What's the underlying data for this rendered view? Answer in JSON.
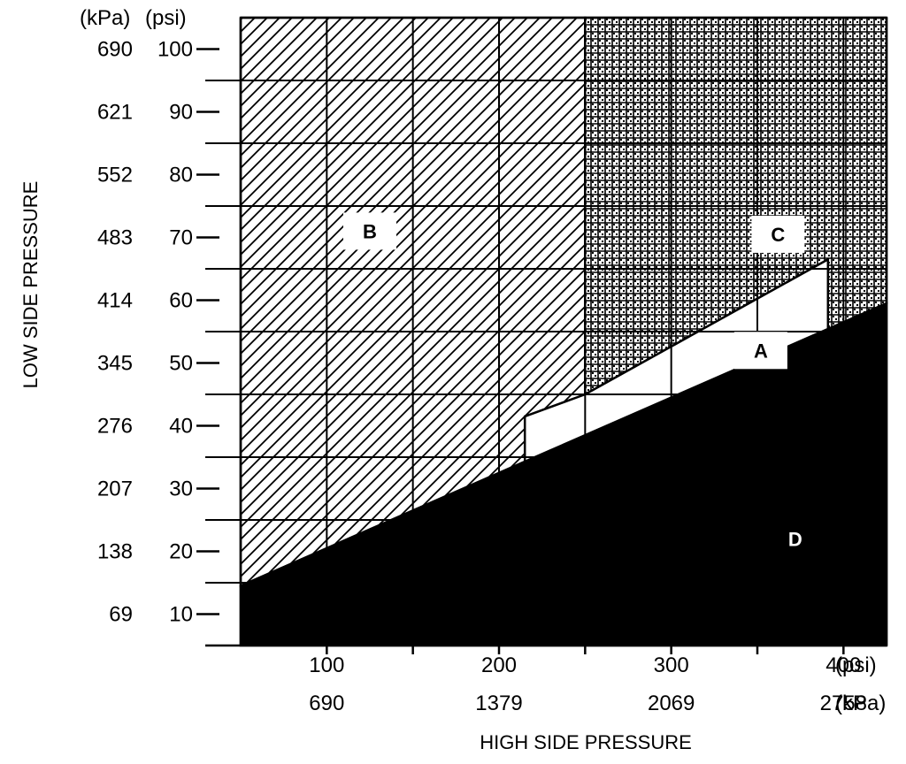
{
  "chart_data": {
    "type": "area",
    "xlabel": "HIGH SIDE PRESSURE",
    "ylabel": "LOW SIDE PRESSURE",
    "x_units": [
      "(psi)",
      "(kPa)"
    ],
    "y_units": [
      "(kPa)",
      "(psi)"
    ],
    "xlim": [
      50,
      425
    ],
    "ylim": [
      5,
      105
    ],
    "x_ticks": [
      {
        "psi": 100,
        "psi_label": "100",
        "kpa_label": "690"
      },
      {
        "psi": 200,
        "psi_label": "200",
        "kpa_label": "1379"
      },
      {
        "psi": 300,
        "psi_label": "300",
        "kpa_label": "2069"
      },
      {
        "psi": 400,
        "psi_label": "400",
        "kpa_label": "2758"
      }
    ],
    "x_minor_ticks": [
      150,
      250,
      350
    ],
    "y_ticks": [
      {
        "psi": 10,
        "psi_label": "10",
        "kpa_label": "69"
      },
      {
        "psi": 20,
        "psi_label": "20",
        "kpa_label": "138"
      },
      {
        "psi": 30,
        "psi_label": "30",
        "kpa_label": "207"
      },
      {
        "psi": 40,
        "psi_label": "40",
        "kpa_label": "276"
      },
      {
        "psi": 50,
        "psi_label": "50",
        "kpa_label": "345"
      },
      {
        "psi": 60,
        "psi_label": "60",
        "kpa_label": "414"
      },
      {
        "psi": 70,
        "psi_label": "70",
        "kpa_label": "483"
      },
      {
        "psi": 80,
        "psi_label": "80",
        "kpa_label": "552"
      },
      {
        "psi": 90,
        "psi_label": "90",
        "kpa_label": "621"
      },
      {
        "psi": 100,
        "psi_label": "100",
        "kpa_label": "690"
      }
    ],
    "grid_x": [
      100,
      150,
      200,
      250,
      300,
      350,
      400,
      425
    ],
    "grid_y": [
      15,
      25,
      35,
      45,
      55,
      65,
      75,
      85,
      95
    ],
    "grid": true,
    "regions": [
      {
        "label": "A",
        "fill": "white",
        "polygon": [
          [
            215,
            41.5
          ],
          [
            215,
            33
          ],
          [
            391,
            55.4
          ],
          [
            391,
            66.5
          ],
          [
            250,
            45
          ]
        ],
        "label_at": [
          352,
          52
        ]
      },
      {
        "label": "B",
        "fill": "diagonal-hatch",
        "polygon": [
          [
            50,
            105
          ],
          [
            50,
            14.5
          ],
          [
            250,
            38.3
          ],
          [
            250,
            105
          ]
        ],
        "label_at": [
          125,
          71
        ]
      },
      {
        "label": "C",
        "fill": "cross-hatch",
        "polygon": [
          [
            250,
            105
          ],
          [
            250,
            45
          ],
          [
            391,
            66.5
          ],
          [
            391,
            55.4
          ],
          [
            425,
            59.5
          ],
          [
            425,
            105
          ]
        ],
        "label_at": [
          362,
          70.5
        ]
      },
      {
        "label": "D",
        "fill": "black",
        "polygon": [
          [
            50,
            14.5
          ],
          [
            425,
            59.5
          ],
          [
            425,
            5
          ],
          [
            50,
            5
          ]
        ],
        "label_at": [
          372,
          22
        ]
      }
    ],
    "colors": {
      "ink": "#000000",
      "paper": "#ffffff"
    }
  }
}
